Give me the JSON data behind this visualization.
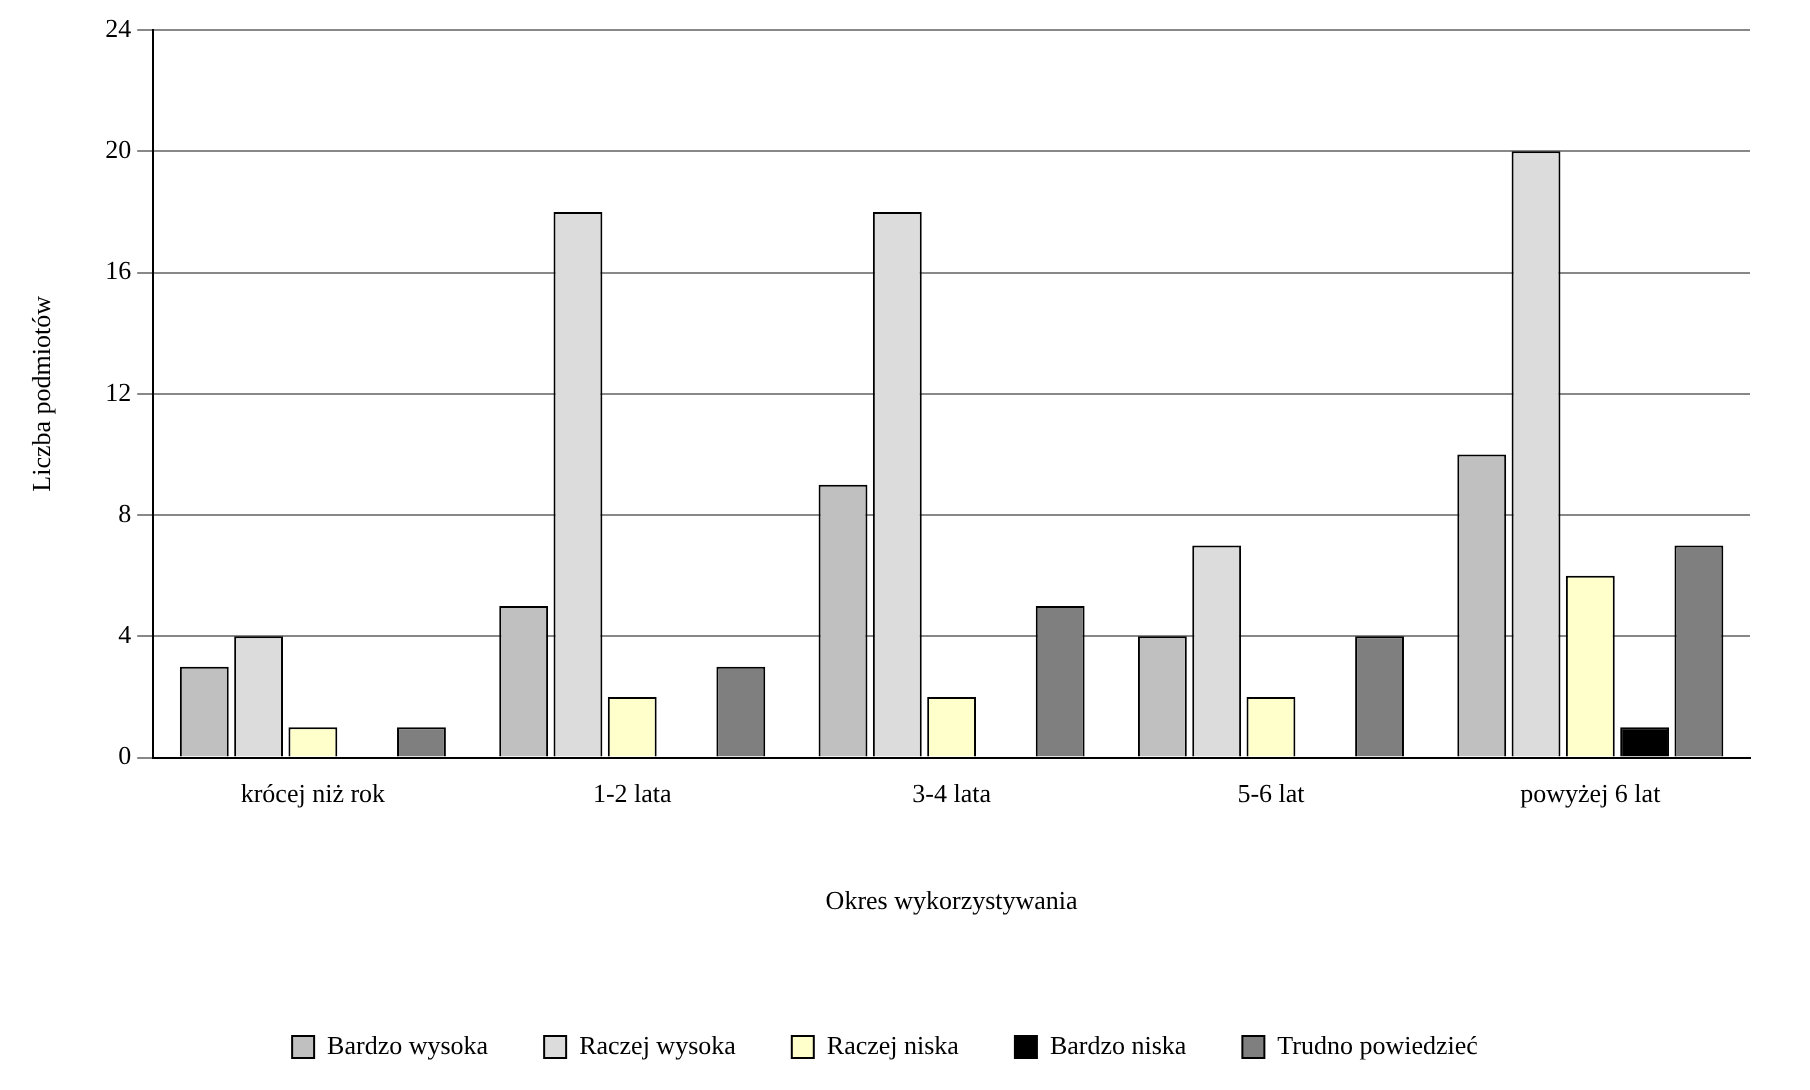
{
  "chart_data": {
    "type": "bar",
    "xlabel": "Okres wykorzystywania",
    "ylabel": "Liczba podmiotów",
    "categories": [
      "krócej niż rok",
      "1-2 lata",
      "3-4 lata",
      "5-6 lat",
      "powyżej 6 lat"
    ],
    "series": [
      {
        "name": "Bardzo wysoka",
        "color": "#c0c0c0",
        "values": [
          3,
          5,
          9,
          4,
          10
        ]
      },
      {
        "name": "Raczej wysoka",
        "color": "#dcdcdc",
        "values": [
          4,
          18,
          18,
          7,
          20
        ]
      },
      {
        "name": "Raczej niska",
        "color": "#ffffcc",
        "values": [
          1,
          2,
          2,
          2,
          6
        ]
      },
      {
        "name": "Bardzo niska",
        "color": "#000000",
        "values": [
          0,
          0,
          0,
          0,
          1
        ]
      },
      {
        "name": "Trudno powiedzieć",
        "color": "#7f7f7f",
        "values": [
          1,
          3,
          5,
          4,
          7
        ]
      }
    ],
    "ylim": [
      0,
      24
    ],
    "yticks": [
      0,
      4,
      8,
      12,
      16,
      20,
      24
    ],
    "grid": "y",
    "legend": "bottom"
  }
}
